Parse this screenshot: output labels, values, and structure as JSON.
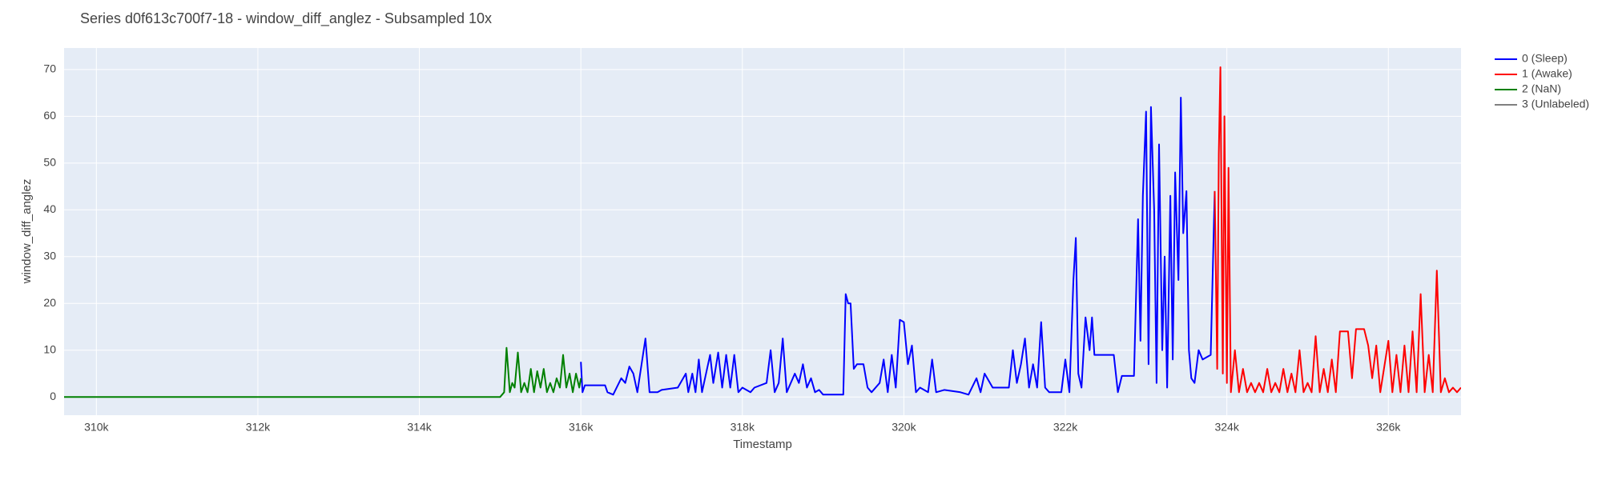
{
  "chart_data": {
    "type": "line",
    "title": "Series d0f613c700f7-18 - window_diff_anglez - Subsampled 10x",
    "x_label": "Timestamp",
    "y_label": "window_diff_anglez",
    "xlim": [
      309600,
      326900
    ],
    "ylim": [
      -3.9,
      74.6
    ],
    "xticks": [
      {
        "value": 310000,
        "label": "310k"
      },
      {
        "value": 312000,
        "label": "312k"
      },
      {
        "value": 314000,
        "label": "314k"
      },
      {
        "value": 316000,
        "label": "316k"
      },
      {
        "value": 318000,
        "label": "318k"
      },
      {
        "value": 320000,
        "label": "320k"
      },
      {
        "value": 322000,
        "label": "322k"
      },
      {
        "value": 324000,
        "label": "324k"
      },
      {
        "value": 326000,
        "label": "326k"
      }
    ],
    "yticks": [
      0,
      10,
      20,
      30,
      40,
      50,
      60,
      70
    ],
    "grid": true,
    "legend": "right",
    "series": [
      {
        "name": "0 (Sleep)",
        "color": "#0000ff",
        "x": [
          316000,
          316020,
          316050,
          316300,
          316330,
          316400,
          316500,
          316550,
          316600,
          316650,
          316700,
          316800,
          316850,
          316950,
          317000,
          317200,
          317300,
          317330,
          317380,
          317420,
          317460,
          317500,
          317600,
          317640,
          317700,
          317750,
          317800,
          317850,
          317900,
          317950,
          318000,
          318100,
          318150,
          318300,
          318350,
          318400,
          318450,
          318500,
          318550,
          318650,
          318700,
          318750,
          318800,
          318850,
          318900,
          318950,
          319000,
          319100,
          319250,
          319280,
          319310,
          319340,
          319380,
          319420,
          319500,
          319550,
          319600,
          319700,
          319750,
          319800,
          319850,
          319900,
          319950,
          320000,
          320050,
          320100,
          320150,
          320200,
          320300,
          320350,
          320400,
          320500,
          320700,
          320800,
          320900,
          320950,
          321000,
          321100,
          321300,
          321350,
          321400,
          321450,
          321500,
          321550,
          321600,
          321650,
          321700,
          321750,
          321800,
          321950,
          322000,
          322050,
          322100,
          322130,
          322160,
          322200,
          322250,
          322300,
          322330,
          322360,
          322600,
          322650,
          322700,
          322850,
          322900,
          322930,
          322960,
          323000,
          323030,
          323060,
          323100,
          323130,
          323160,
          323200,
          323230,
          323260,
          323300,
          323330,
          323360,
          323400,
          323430,
          323460,
          323500,
          323530,
          323560,
          323600,
          323650,
          323700,
          323800,
          323850
        ],
        "values": [
          7.5,
          1,
          2.5,
          2.5,
          1,
          0.5,
          4,
          3,
          6.5,
          5,
          1,
          12.5,
          1,
          1,
          1.5,
          2,
          5,
          1,
          5,
          1,
          8,
          1,
          9,
          3,
          9.5,
          2,
          9,
          2,
          9,
          1,
          2,
          1,
          2,
          3,
          10,
          1,
          3,
          12.5,
          1,
          5,
          3,
          7,
          2,
          4,
          1,
          1.5,
          0.5,
          0.5,
          0.5,
          22,
          20,
          20,
          6,
          7,
          7,
          2,
          1,
          3,
          8,
          1,
          9,
          2,
          16.5,
          16,
          7,
          11,
          1,
          2,
          1,
          8,
          1,
          1.5,
          1,
          0.5,
          4,
          1,
          5,
          2,
          2,
          10,
          3,
          7,
          12.5,
          2,
          7,
          2,
          16,
          2,
          1,
          1,
          8,
          1,
          25,
          34,
          5,
          2,
          17,
          10,
          17,
          9,
          9,
          1,
          4.5,
          4.5,
          38,
          12,
          43,
          61,
          7,
          62,
          40,
          3,
          54,
          10,
          30,
          2,
          43,
          8,
          48,
          25,
          64,
          35,
          44,
          10,
          4,
          3,
          10,
          8,
          9,
          44
        ]
      },
      {
        "name": "1 (Awake)",
        "color": "#ff0000",
        "x": [
          323850,
          323880,
          323900,
          323920,
          323950,
          323970,
          324000,
          324020,
          324050,
          324100,
          324150,
          324200,
          324250,
          324300,
          324350,
          324400,
          324450,
          324500,
          324550,
          324600,
          324650,
          324700,
          324750,
          324800,
          324850,
          324900,
          324950,
          325000,
          325050,
          325100,
          325150,
          325200,
          325250,
          325300,
          325350,
          325400,
          325500,
          325550,
          325600,
          325700,
          325750,
          325800,
          325850,
          325900,
          326000,
          326050,
          326100,
          326150,
          326200,
          326250,
          326300,
          326350,
          326400,
          326450,
          326500,
          326550,
          326600,
          326650,
          326700,
          326750,
          326800,
          326850,
          326900
        ],
        "values": [
          44,
          6,
          52,
          70.5,
          5,
          60,
          3,
          49,
          1,
          10,
          1,
          6,
          1,
          3,
          1,
          3,
          1,
          6,
          1,
          3,
          1,
          6,
          1,
          5,
          1,
          10,
          1,
          3,
          1,
          13,
          1,
          6,
          1,
          8,
          1,
          14,
          14,
          4,
          14.5,
          14.5,
          11,
          4,
          11,
          1,
          12,
          1,
          9,
          1,
          11,
          1,
          14,
          1,
          22,
          1,
          9,
          1,
          27,
          1,
          4,
          1,
          2,
          1,
          2
        ]
      },
      {
        "name": "2 (NaN)",
        "color": "#008000",
        "x": [
          309600,
          315000,
          315050,
          315080,
          315120,
          315150,
          315180,
          315220,
          315260,
          315300,
          315340,
          315380,
          315420,
          315460,
          315500,
          315540,
          315580,
          315620,
          315660,
          315700,
          315740,
          315780,
          315820,
          315860,
          315900,
          315940,
          315980,
          316000
        ],
        "values": [
          0,
          0,
          1,
          10.5,
          1,
          3,
          2,
          9.5,
          1,
          3,
          1,
          6,
          1,
          5.5,
          2,
          6,
          1,
          3,
          1,
          4,
          2,
          9,
          2,
          5,
          1,
          5,
          2,
          4
        ]
      },
      {
        "name": "3 (Unlabeled)",
        "color": "#808080",
        "x": [],
        "values": []
      }
    ]
  }
}
